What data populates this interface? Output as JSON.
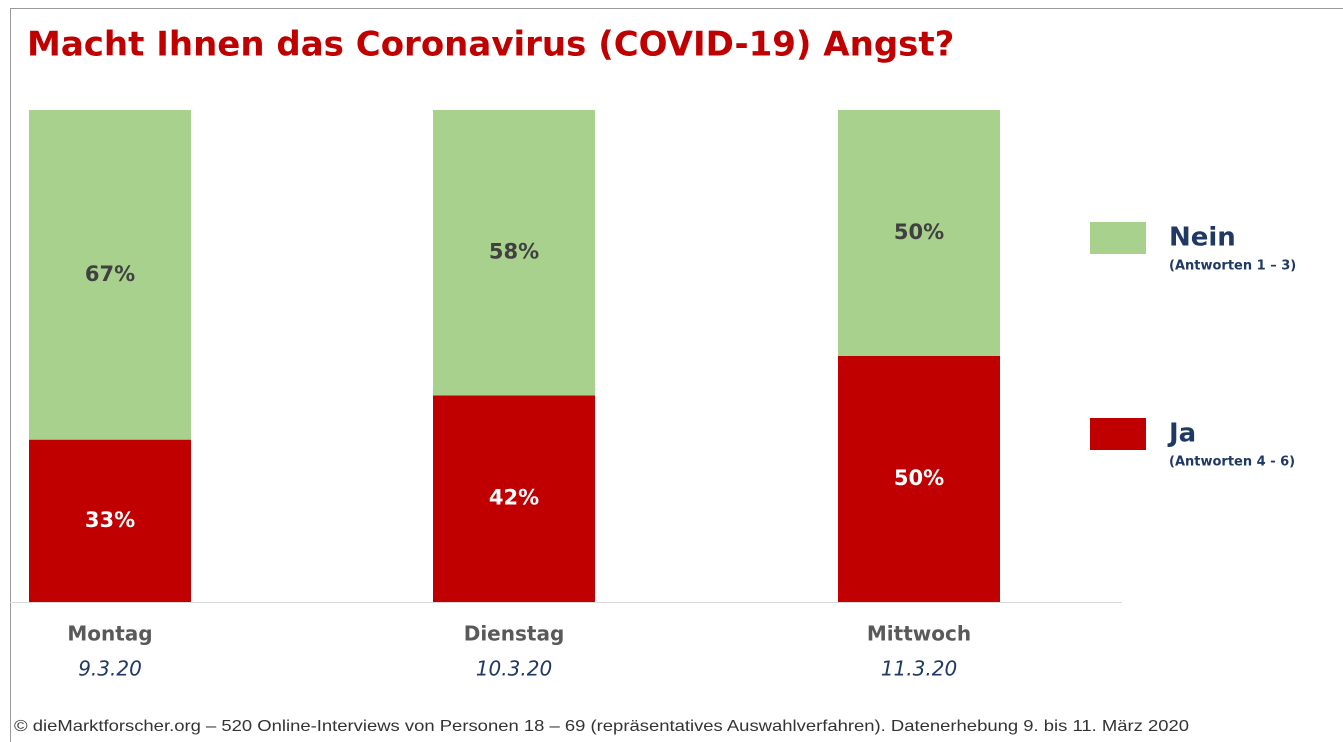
{
  "chart_data": {
    "type": "stacked_bar",
    "title": "Macht Ihnen das Coronavirus (COVID-19) Angst?",
    "categories": [
      "Montag",
      "Dienstag",
      "Mittwoch"
    ],
    "dates": [
      "9.3.20",
      "10.3.20",
      "11.3.20"
    ],
    "series": [
      {
        "name": "Nein",
        "note": "(Antworten 1 – 3)",
        "color": "#a9d18e",
        "values": [
          67,
          58,
          50
        ],
        "value_labels": [
          "67%",
          "58%",
          "50%"
        ]
      },
      {
        "name": "Ja",
        "note": "(Antworten 4 - 6)",
        "color": "#c00000",
        "values": [
          33,
          42,
          50
        ],
        "value_labels": [
          "33%",
          "42%",
          "50%"
        ]
      }
    ],
    "ylim": [
      0,
      100
    ],
    "source": "© dieMarktforscher.org – 520 Online-Interviews von Personen 18 – 69 (repräsentatives Auswahlverfahren). Datenerhebung 9. bis 11. März 2020"
  }
}
